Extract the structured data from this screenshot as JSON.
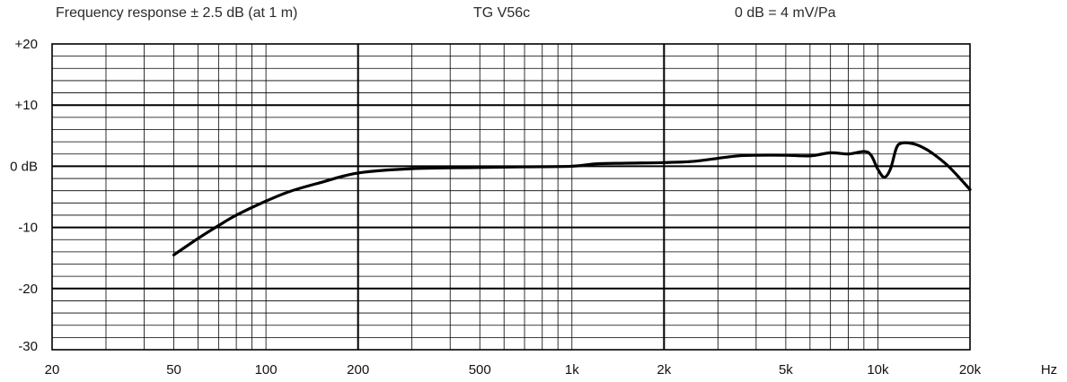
{
  "header": {
    "left": "Frequency response ± 2.5 dB (at 1 m)",
    "center": "TG V56c",
    "right": "0 dB =  4 mV/Pa"
  },
  "chart_data": {
    "type": "line",
    "title": "",
    "xlabel": "Hz",
    "ylabel": "",
    "xscale": "log",
    "xlim": [
      20,
      20000
    ],
    "ylim": [
      -30,
      20
    ],
    "grid": true,
    "x_ticks": [
      {
        "value": 20,
        "label": "20"
      },
      {
        "value": 50,
        "label": "50"
      },
      {
        "value": 100,
        "label": "100"
      },
      {
        "value": 200,
        "label": "200"
      },
      {
        "value": 500,
        "label": "500"
      },
      {
        "value": 1000,
        "label": "1k"
      },
      {
        "value": 2000,
        "label": "2k"
      },
      {
        "value": 5000,
        "label": "5k"
      },
      {
        "value": 10000,
        "label": "10k"
      },
      {
        "value": 20000,
        "label": "20k"
      }
    ],
    "x_unit_label": "Hz",
    "y_ticks": [
      {
        "value": 20,
        "label": "+20"
      },
      {
        "value": 10,
        "label": "+10"
      },
      {
        "value": 0,
        "label": "0 dB"
      },
      {
        "value": -10,
        "label": "-10"
      },
      {
        "value": -20,
        "label": "-20"
      },
      {
        "value": -30,
        "label": "-30"
      }
    ],
    "series": [
      {
        "color": "#000000",
        "x": [
          50,
          60,
          70,
          80,
          100,
          120,
          150,
          200,
          300,
          500,
          700,
          1000,
          1200,
          1500,
          2000,
          2500,
          3000,
          3500,
          4000,
          5000,
          6000,
          7000,
          8000,
          9000,
          9500,
          10000,
          10500,
          11000,
          11500,
          12000,
          13000,
          14000,
          15000,
          17000,
          20000
        ],
        "y": [
          -14.5,
          -11.8,
          -9.7,
          -8.0,
          -5.7,
          -4.1,
          -2.7,
          -1.1,
          -0.4,
          -0.2,
          -0.1,
          0.0,
          0.4,
          0.5,
          0.6,
          0.8,
          1.3,
          1.7,
          1.8,
          1.8,
          1.7,
          2.2,
          2.0,
          2.4,
          1.8,
          -0.5,
          -1.8,
          -0.4,
          3.0,
          3.8,
          3.7,
          3.1,
          2.2,
          0.0,
          -3.8
        ]
      }
    ]
  }
}
